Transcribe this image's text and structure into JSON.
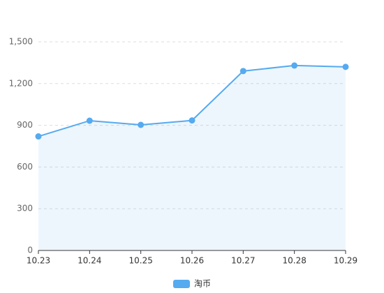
{
  "chart_data": {
    "type": "line",
    "categories": [
      "10.23",
      "10.24",
      "10.25",
      "10.26",
      "10.27",
      "10.28",
      "10.29"
    ],
    "series": [
      {
        "name": "淘币",
        "color": "#55aaf0",
        "values": [
          820,
          933,
          903,
          935,
          1290,
          1330,
          1320
        ]
      }
    ],
    "ylim": [
      0,
      1500
    ],
    "yticks": [
      0,
      300,
      600,
      900,
      {
        "value": 1200,
        "label": "1,200"
      },
      {
        "value": 1500,
        "label": "1,500"
      }
    ],
    "grid": true,
    "area": true,
    "legend": "bottom"
  }
}
